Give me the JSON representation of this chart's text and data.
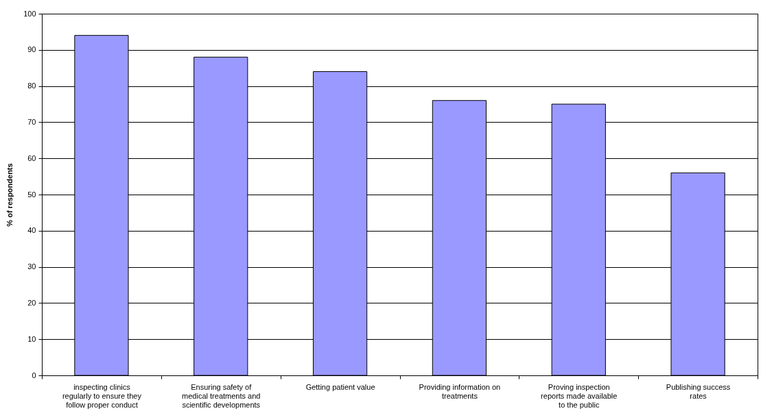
{
  "chart_data": {
    "type": "bar",
    "ylabel": "% of respondents",
    "categories": [
      "inspecting clinics regularly to ensure they follow proper conduct",
      "Ensuring safety of medical treatments and scientific developments",
      "Getting patient value",
      "Providing information on treatments",
      "Proving inspection reports made available to the public",
      "Publishing success rates"
    ],
    "values": [
      94,
      88,
      84,
      76,
      75,
      56
    ],
    "color": "#9999ff",
    "ylim": [
      0,
      100
    ],
    "yticks": [
      0,
      10,
      20,
      30,
      40,
      50,
      60,
      70,
      80,
      90,
      100
    ],
    "grid": "y"
  }
}
